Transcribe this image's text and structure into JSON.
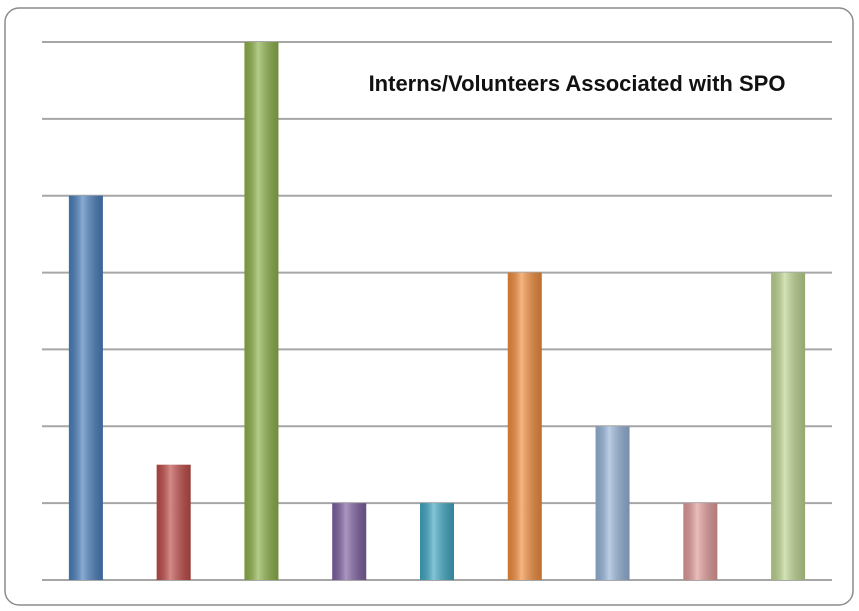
{
  "chart_data": {
    "type": "bar",
    "title": "Interns/Volunteers Associated with SPO",
    "categories": [
      null,
      null,
      null,
      null,
      null,
      null,
      null,
      null,
      null
    ],
    "values": [
      5,
      1.5,
      7,
      1,
      1,
      4,
      2,
      1,
      4
    ],
    "colors": [
      "#4a7ebb",
      "#be4b48",
      "#8cb04a",
      "#7d60a0",
      "#3fa6c2",
      "#f08c3c",
      "#95b3d7",
      "#df9a98",
      "#bcd48f"
    ],
    "ylim": [
      0,
      7
    ],
    "yticks": [
      0,
      1,
      2,
      3,
      4,
      5,
      6,
      7
    ],
    "grid": true
  }
}
